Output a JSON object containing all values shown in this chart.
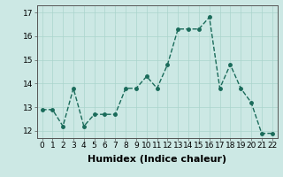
{
  "x": [
    0,
    1,
    2,
    3,
    4,
    5,
    6,
    7,
    8,
    9,
    10,
    11,
    12,
    13,
    14,
    15,
    16,
    17,
    18,
    19,
    20,
    21,
    22
  ],
  "y": [
    12.9,
    12.9,
    12.2,
    13.8,
    12.2,
    12.7,
    12.7,
    12.7,
    13.8,
    13.8,
    14.3,
    13.8,
    14.8,
    16.3,
    16.3,
    16.3,
    16.8,
    13.8,
    14.8,
    13.8,
    13.2,
    11.9,
    11.9
  ],
  "line_color": "#1a6b5a",
  "marker": "o",
  "marker_size": 2.5,
  "line_width": 1.0,
  "bg_color": "#cce8e4",
  "grid_color": "#aad4cc",
  "xlabel": "Humidex (Indice chaleur)",
  "xlabel_fontsize": 8,
  "xlabel_fontweight": "bold",
  "yticks": [
    12,
    13,
    14,
    15,
    16,
    17
  ],
  "xticks": [
    0,
    1,
    2,
    3,
    4,
    5,
    6,
    7,
    8,
    9,
    10,
    11,
    12,
    13,
    14,
    15,
    16,
    17,
    18,
    19,
    20,
    21,
    22
  ],
  "ylim": [
    11.7,
    17.3
  ],
  "xlim": [
    -0.5,
    22.5
  ],
  "tick_fontsize": 6.5,
  "linestyle": "--"
}
